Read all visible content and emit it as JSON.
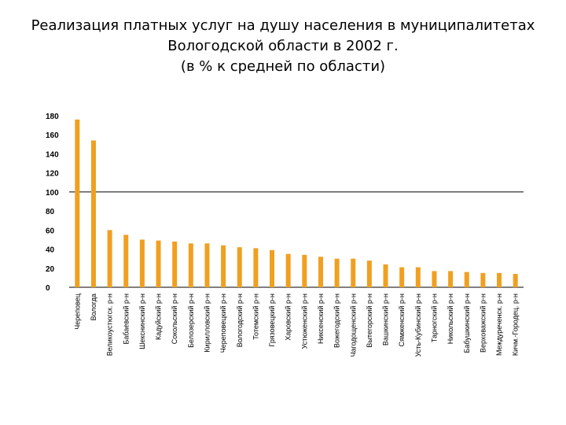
{
  "title_lines": [
    "Реализация платных услуг на душу населения в муниципалитетах",
    "Вологодской области в 2002 г.",
    "(в % к средней по области)"
  ],
  "chart_data": {
    "type": "bar",
    "categories": [
      "Череповец",
      "Вологда",
      "Великоустюгск. р-н",
      "Бабаевский р-н",
      "Шекснинский р-н",
      "Кадуйский р-н",
      "Сокольский р-н",
      "Белозерский р-н",
      "Кирилловский р-н",
      "Череповецкий р-н",
      "Вологодский р-н",
      "Тотемский р-н",
      "Грязовецкий р-н",
      "Харовский р-н",
      "Устюженский р-н",
      "Никсенский р-н",
      "Вожегодский р-н",
      "Чагодощенский р-н",
      "Вытегорский р-н",
      "Вашкинский р-н",
      "Сямженский р-н",
      "Усть-Кубинский р-н",
      "Тарногский р-н",
      "Никольский р-н",
      "Бабушкинский р-н",
      "Верховажский р-н",
      "Междуреченск. р-н",
      "Кичм.-Городец. р-н"
    ],
    "values": [
      176,
      154,
      60,
      55,
      50,
      49,
      48,
      46,
      46,
      44,
      42,
      41,
      39,
      35,
      34,
      32,
      30,
      30,
      28,
      24,
      21,
      21,
      17,
      17,
      16,
      15,
      15,
      14
    ],
    "ylim": [
      0,
      180
    ],
    "yticks": [
      0,
      20,
      40,
      60,
      80,
      100,
      120,
      140,
      160,
      180
    ],
    "reference_line": 100,
    "colors": {
      "bar": "#F0A020",
      "axis": "#000000",
      "reference": "#000000"
    }
  }
}
